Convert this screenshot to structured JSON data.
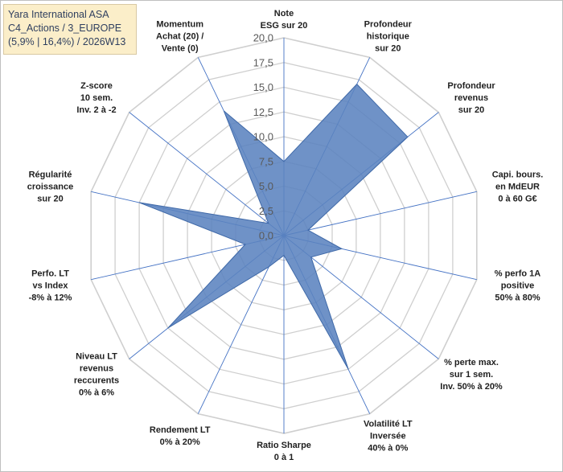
{
  "header": {
    "lines": [
      "Yara International ASA",
      "C4_Actions / 3_EUROPE",
      "(5,9% | 16,4%) / 2026W13"
    ]
  },
  "chart_data": {
    "type": "radar",
    "title": "Yara International ASA",
    "rmax": 20,
    "tick_step": 2.5,
    "tick_labels": [
      "0,0",
      "2,5",
      "5,0",
      "7,5",
      "10,0",
      "12,5",
      "15,0",
      "17,5",
      "20,0"
    ],
    "axes": [
      {
        "label": [
          "Note",
          "ESG sur 20"
        ],
        "value": 7.5
      },
      {
        "label": [
          "Profondeur",
          "historique",
          "sur 20"
        ],
        "value": 17
      },
      {
        "label": [
          "Profondeur",
          "revenus",
          "sur 20"
        ],
        "value": 16
      },
      {
        "label": [
          "Capi. bours.",
          "en MdEUR",
          "0 à 60 G€"
        ],
        "value": 2.5
      },
      {
        "label": [
          "% perfo 1A",
          "positive",
          "50% à 80%"
        ],
        "value": 6
      },
      {
        "label": [
          "% perte max.",
          "sur 1 sem.",
          "Inv. 50% à 20%"
        ],
        "value": 3.5
      },
      {
        "label": [
          "Volatilité LT",
          "Inversée",
          "40% à 0%"
        ],
        "value": 15
      },
      {
        "label": [
          "Ratio Sharpe",
          "0 à 1"
        ],
        "value": 2
      },
      {
        "label": [
          "Rendement LT",
          "0% à 20%"
        ],
        "value": 3.5
      },
      {
        "label": [
          "Niveau LT",
          "revenus",
          "reccurents",
          "0% à 6%"
        ],
        "value": 15
      },
      {
        "label": [
          "Perfo. LT",
          "vs Index",
          "-8% à 12%"
        ],
        "value": 4
      },
      {
        "label": [
          "Régularité",
          "croissance",
          "sur 20"
        ],
        "value": 15
      },
      {
        "label": [
          "Z-score",
          "10 sem.",
          "Inv. 2 à -2"
        ],
        "value": 2
      },
      {
        "label": [
          "Momentum",
          "Achat (20) /",
          "Vente (0)"
        ],
        "value": 14
      }
    ],
    "colors": {
      "fill": "#5b83bf",
      "stroke": "#3f69a8",
      "grid": "#cfcfcf",
      "spoke": "#4472c4"
    }
  }
}
